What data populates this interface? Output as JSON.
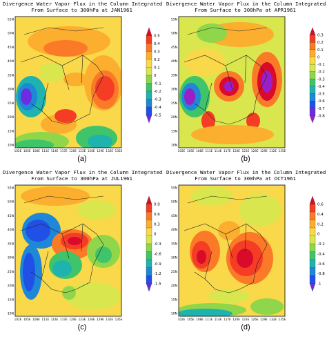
{
  "panels": [
    {
      "id": "a",
      "title_line1": "Divergence Water Vapor Flux in the Column Integrated",
      "title_line2": "From Surface to 300hPa at JAN1961",
      "label": "(a)",
      "lat_ticks": [
        "55N",
        "50N",
        "45N",
        "40N",
        "35N",
        "30N",
        "25N",
        "20N",
        "15N",
        "10N"
      ],
      "lon_ticks": [
        "102E",
        "105E",
        "108E",
        "111E",
        "114E",
        "117E",
        "120E",
        "123E",
        "126E",
        "129E",
        "132E",
        "135E"
      ],
      "colorbar_ticks": [
        "0.5",
        "0.4",
        "0.3",
        "0.2",
        "0.1",
        "0",
        "-0.1",
        "-0.2",
        "-0.3",
        "-0.4",
        "-0.5"
      ],
      "colorbar_colors": [
        "#d90a2a",
        "#f43d24",
        "#fa7a28",
        "#fcae2e",
        "#f9d94a",
        "#d9e64d",
        "#8fd64a",
        "#40c46a",
        "#1eb3ae",
        "#1e87d8",
        "#2050e6",
        "#6a2ee0"
      ]
    },
    {
      "id": "b",
      "title_line1": "Divergence Water Vapor Flux in the Column Integrated",
      "title_line2": "From Surface to 300hPa at APR1961",
      "label": "(b)",
      "lat_ticks": [
        "55N",
        "50N",
        "45N",
        "40N",
        "35N",
        "30N",
        "25N",
        "20N",
        "15N",
        "10N"
      ],
      "lon_ticks": [
        "102E",
        "105E",
        "108E",
        "111E",
        "114E",
        "117E",
        "120E",
        "123E",
        "126E",
        "129E",
        "132E",
        "135E"
      ],
      "colorbar_ticks": [
        "0.3",
        "0.2",
        "0.1",
        "0",
        "-0.1",
        "-0.2",
        "-0.3",
        "-0.4",
        "-0.5",
        "-0.6",
        "-0.7",
        "-0.8"
      ],
      "colorbar_colors": [
        "#d90a2a",
        "#f43d24",
        "#fa7a28",
        "#fcae2e",
        "#f9d94a",
        "#d9e64d",
        "#8fd64a",
        "#40c46a",
        "#1eb3ae",
        "#1e87d8",
        "#2050e6",
        "#6a2ee0",
        "#9b1fc8"
      ]
    },
    {
      "id": "c",
      "title_line1": "Divergence Water Vapor Flux in the Column Integrated",
      "title_line2": "From Surface to 300hPa at JUL1961",
      "label": "(c)",
      "lat_ticks": [
        "55N",
        "50N",
        "45N",
        "40N",
        "35N",
        "30N",
        "25N",
        "20N",
        "15N",
        "10N"
      ],
      "lon_ticks": [
        "102E",
        "105E",
        "108E",
        "111E",
        "114E",
        "117E",
        "120E",
        "123E",
        "126E",
        "129E",
        "132E",
        "135E"
      ],
      "colorbar_ticks": [
        "0.9",
        "0.6",
        "0.3",
        "0",
        "-0.3",
        "-0.6",
        "-0.9",
        "-1.2",
        "-1.5"
      ],
      "colorbar_colors": [
        "#d90a2a",
        "#f43d24",
        "#fa7a28",
        "#fcae2e",
        "#f9d94a",
        "#d9e64d",
        "#8fd64a",
        "#40c46a",
        "#1eb3ae",
        "#1e87d8",
        "#2050e6",
        "#6a2ee0"
      ]
    },
    {
      "id": "d",
      "title_line1": "Divergence Water Vapor Flux in the Column Integrated",
      "title_line2": "From Surface to 300hPa at OCT1961",
      "label": "(d)",
      "lat_ticks": [
        "55N",
        "50N",
        "45N",
        "40N",
        "35N",
        "30N",
        "25N",
        "20N",
        "15N",
        "10N"
      ],
      "lon_ticks": [
        "102E",
        "105E",
        "108E",
        "111E",
        "114E",
        "117E",
        "120E",
        "123E",
        "126E",
        "129E",
        "132E",
        "135E"
      ],
      "colorbar_ticks": [
        "0.6",
        "0.4",
        "0.2",
        "0",
        "-0.2",
        "-0.4",
        "-0.6",
        "-0.8",
        "-1"
      ],
      "colorbar_colors": [
        "#d90a2a",
        "#f43d24",
        "#fa7a28",
        "#fcae2e",
        "#f9d94a",
        "#d9e64d",
        "#8fd64a",
        "#40c46a",
        "#1eb3ae",
        "#1e87d8",
        "#2050e6",
        "#6a2ee0"
      ]
    }
  ]
}
